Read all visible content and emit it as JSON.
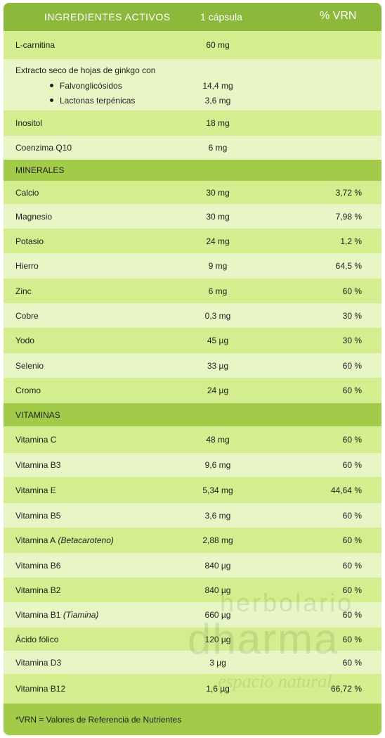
{
  "table": {
    "header": [
      "INGREDIENTES ACTIVOS",
      "1 cápsula",
      "% VRN"
    ],
    "rows": [
      {
        "name": "L-carnitina",
        "amount": "60 mg"
      },
      {
        "name": "Extracto seco de hojas de ginkgo con",
        "items": [
          {
            "name": "Falvonglicósidos",
            "amount": "14,4 mg"
          },
          {
            "name": "Lactonas terpénicas",
            "amount": "3,6 mg"
          }
        ]
      },
      {
        "name": "Inositol",
        "amount": "18 mg"
      },
      {
        "name": "Coenzima Q10",
        "amount": "6 mg"
      },
      {
        "section": "MINERALES"
      },
      {
        "name": "Calcio",
        "amount": "30 mg",
        "vrn": "3,72 %"
      },
      {
        "name": "Magnesio",
        "amount": "30 mg",
        "vrn": "7,98 %"
      },
      {
        "name": "Potasio",
        "amount": "24 mg",
        "vrn": "1,2 %"
      },
      {
        "name": "Hierro",
        "amount": "9 mg",
        "vrn": "64,5 %"
      },
      {
        "name": "Zinc",
        "amount": "6 mg",
        "vrn": "60 %"
      },
      {
        "name": "Cobre",
        "amount": "0,3 mg",
        "vrn": "30 %"
      },
      {
        "name": "Yodo",
        "amount": "45 µg",
        "vrn": "30 %"
      },
      {
        "name": "Selenio",
        "amount": "33 µg",
        "vrn": "60 %"
      },
      {
        "name": "Cromo",
        "amount": "24 µg",
        "vrn": "60 %"
      },
      {
        "section": "VITAMINAS"
      },
      {
        "name": "Vitamina C",
        "amount": "48 mg",
        "vrn": "60 %"
      },
      {
        "name": "Vitamina B3",
        "amount": "9,6 mg",
        "vrn": "60 %"
      },
      {
        "name": "Vitamina E",
        "amount": "5,34 mg",
        "vrn": "44,64 %"
      },
      {
        "name": "Vitamina B5",
        "amount": "3,6 mg",
        "vrn": "60 %"
      },
      {
        "name": "Vitamina A",
        "note": "(Betacaroteno)",
        "amount": "2,88 mg",
        "vrn": "60 %"
      },
      {
        "name": "Vitamina B6",
        "amount": "840 µg",
        "vrn": "60 %"
      },
      {
        "name": "Vitamina B2",
        "amount": "840 µg",
        "vrn": "60 %"
      },
      {
        "name": "Vitamina B1",
        "note": "(Tiamina)",
        "amount": "660 µg",
        "vrn": "60 %"
      },
      {
        "name": "Ácido fólico",
        "amount": "120 µg",
        "vrn": "60 %"
      },
      {
        "name": "Vitamina D3",
        "amount": "3 µg",
        "vrn": "60 %"
      },
      {
        "name": "Vitamina B12",
        "amount": "1,6 µg",
        "vrn": "66,72 %"
      }
    ],
    "footer": "*VRN = Valores de Referencia de Nutrientes"
  },
  "watermark": [
    "herbolario",
    "dharma",
    "espacio natural"
  ]
}
